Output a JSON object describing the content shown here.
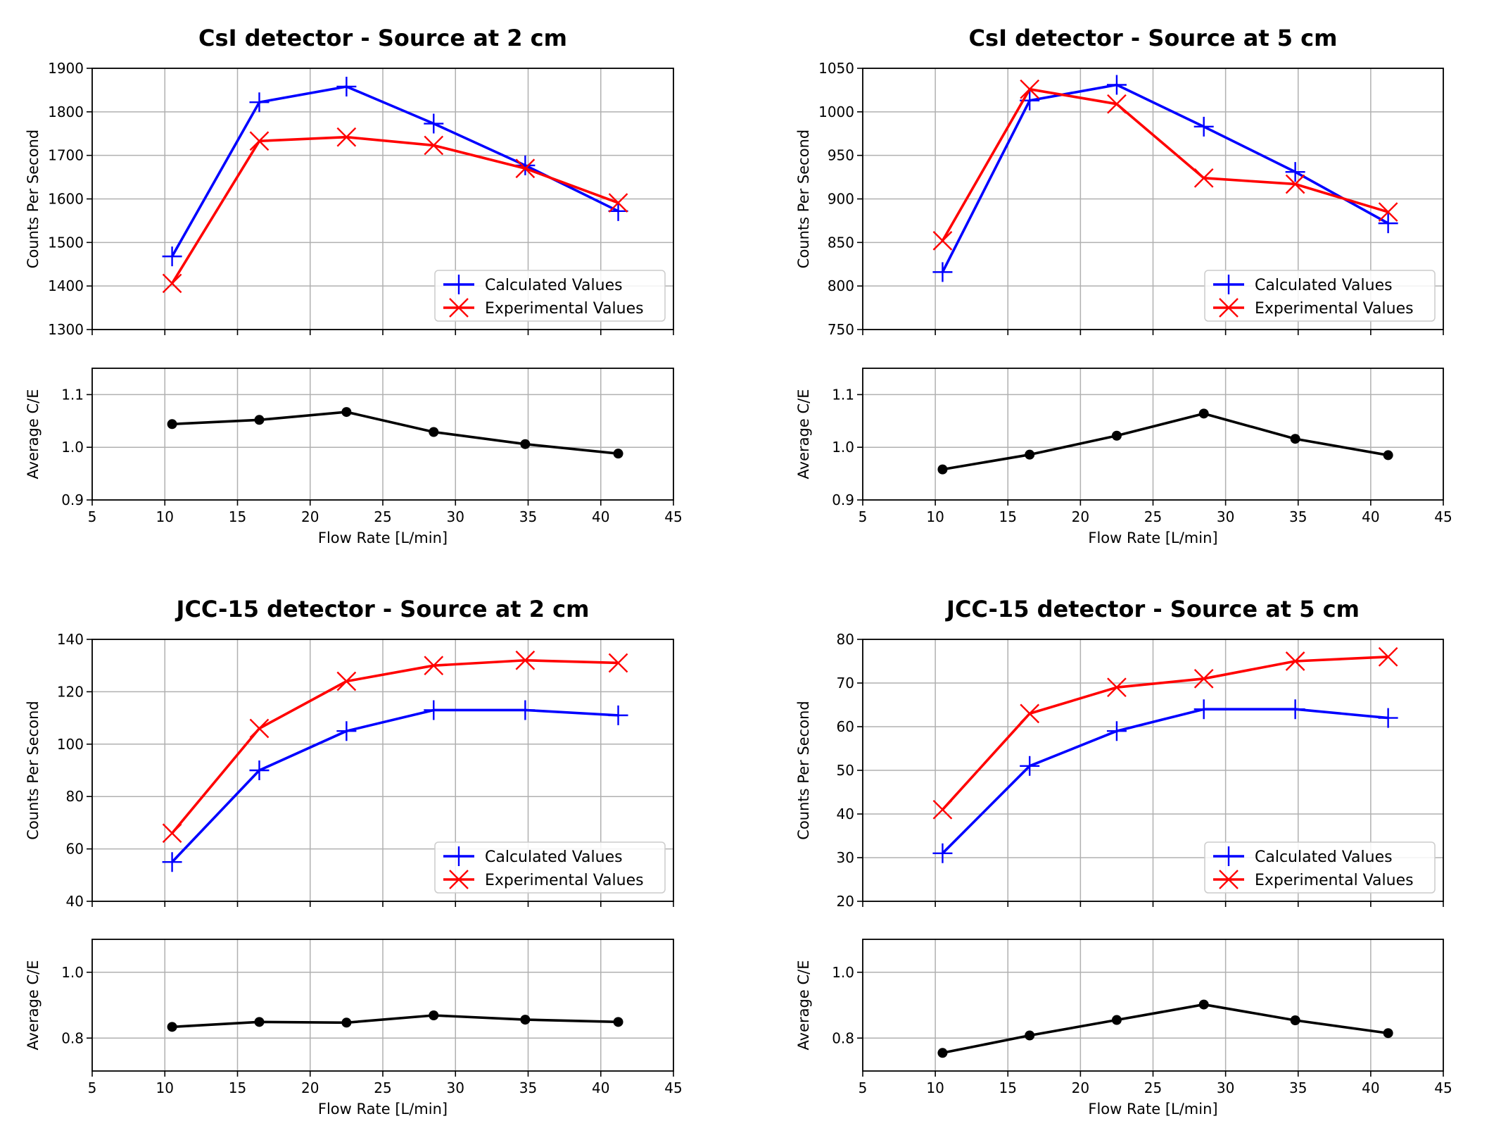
{
  "chart_data": [
    {
      "type": "line",
      "title": "CsI detector - Source at 2 cm",
      "x": [
        10.5,
        16.5,
        22.5,
        28.5,
        34.8,
        41.2
      ],
      "xlim": [
        5,
        45
      ],
      "xticks": [
        5,
        10,
        15,
        20,
        25,
        30,
        35,
        40,
        45
      ],
      "xlabel": "Flow Rate [L/min]",
      "main": {
        "ylabel": "Counts Per Second",
        "ylim": [
          1300,
          1900
        ],
        "yticks": [
          1300,
          1400,
          1500,
          1600,
          1700,
          1800,
          1900
        ],
        "legend_position": "lower-right",
        "series": [
          {
            "name": "Calculated Values",
            "color": "#0000ff",
            "marker": "plus",
            "values": [
              1468,
              1822,
              1858,
              1773,
              1677,
              1572
            ]
          },
          {
            "name": "Experimental Values",
            "color": "#ff0000",
            "marker": "x",
            "values": [
              1406,
              1733,
              1742,
              1723,
              1670,
              1591
            ]
          }
        ]
      },
      "ratio": {
        "ylabel": "Average C/E",
        "ylim": [
          0.9,
          1.15
        ],
        "yticks": [
          0.9,
          1.0,
          1.1
        ],
        "yticklabels": [
          "0.9",
          "1.0",
          "1.1"
        ],
        "color": "#000000",
        "values": [
          1.044,
          1.052,
          1.067,
          1.029,
          1.006,
          0.988
        ]
      }
    },
    {
      "type": "line",
      "title": "CsI detector - Source at 5 cm",
      "x": [
        10.5,
        16.5,
        22.5,
        28.5,
        34.8,
        41.2
      ],
      "xlim": [
        5,
        45
      ],
      "xticks": [
        5,
        10,
        15,
        20,
        25,
        30,
        35,
        40,
        45
      ],
      "xlabel": "Flow Rate [L/min]",
      "main": {
        "ylabel": "Counts Per Second",
        "ylim": [
          750,
          1050
        ],
        "yticks": [
          750,
          800,
          850,
          900,
          950,
          1000,
          1050
        ],
        "legend_position": "lower-right",
        "series": [
          {
            "name": "Calculated Values",
            "color": "#0000ff",
            "marker": "plus",
            "values": [
              816,
              1013,
              1031,
              983,
              931,
              872
            ]
          },
          {
            "name": "Experimental Values",
            "color": "#ff0000",
            "marker": "x",
            "values": [
              852,
              1026,
              1009,
              924,
              917,
              885
            ]
          }
        ]
      },
      "ratio": {
        "ylabel": "Average C/E",
        "ylim": [
          0.9,
          1.15
        ],
        "yticks": [
          0.9,
          1.0,
          1.1
        ],
        "yticklabels": [
          "0.9",
          "1.0",
          "1.1"
        ],
        "color": "#000000",
        "values": [
          0.958,
          0.986,
          1.022,
          1.064,
          1.016,
          0.985
        ]
      }
    },
    {
      "type": "line",
      "title": "JCC-15 detector - Source at 2 cm",
      "x": [
        10.5,
        16.5,
        22.5,
        28.5,
        34.8,
        41.2
      ],
      "xlim": [
        5,
        45
      ],
      "xticks": [
        5,
        10,
        15,
        20,
        25,
        30,
        35,
        40,
        45
      ],
      "xlabel": "Flow Rate [L/min]",
      "main": {
        "ylabel": "Counts Per Second",
        "ylim": [
          40,
          140
        ],
        "yticks": [
          40,
          60,
          80,
          100,
          120,
          140
        ],
        "legend_position": "lower-right",
        "series": [
          {
            "name": "Calculated Values",
            "color": "#0000ff",
            "marker": "plus",
            "values": [
              55,
              90,
              105,
              113,
              113,
              111
            ]
          },
          {
            "name": "Experimental Values",
            "color": "#ff0000",
            "marker": "x",
            "values": [
              66,
              106,
              124,
              130,
              132,
              131
            ]
          }
        ]
      },
      "ratio": {
        "ylabel": "Average C/E",
        "ylim": [
          0.7,
          1.1
        ],
        "yticks": [
          0.8,
          1.0
        ],
        "yticklabels": [
          "0.8",
          "1.0"
        ],
        "color": "#000000",
        "values": [
          0.834,
          0.849,
          0.847,
          0.869,
          0.856,
          0.849
        ]
      }
    },
    {
      "type": "line",
      "title": "JCC-15 detector - Source at 5 cm",
      "x": [
        10.5,
        16.5,
        22.5,
        28.5,
        34.8,
        41.2
      ],
      "xlim": [
        5,
        45
      ],
      "xticks": [
        5,
        10,
        15,
        20,
        25,
        30,
        35,
        40,
        45
      ],
      "xlabel": "Flow Rate [L/min]",
      "main": {
        "ylabel": "Counts Per Second",
        "ylim": [
          20,
          80
        ],
        "yticks": [
          20,
          30,
          40,
          50,
          60,
          70,
          80
        ],
        "legend_position": "lower-right",
        "series": [
          {
            "name": "Calculated Values",
            "color": "#0000ff",
            "marker": "plus",
            "values": [
              31,
              51,
              59,
              64,
              64,
              62
            ]
          },
          {
            "name": "Experimental Values",
            "color": "#ff0000",
            "marker": "x",
            "values": [
              41,
              63,
              69,
              71,
              75,
              76
            ]
          }
        ]
      },
      "ratio": {
        "ylabel": "Average C/E",
        "ylim": [
          0.7,
          1.1
        ],
        "yticks": [
          0.8,
          1.0
        ],
        "yticklabels": [
          "0.8",
          "1.0"
        ],
        "color": "#000000",
        "values": [
          0.755,
          0.808,
          0.855,
          0.902,
          0.854,
          0.815
        ]
      }
    }
  ]
}
